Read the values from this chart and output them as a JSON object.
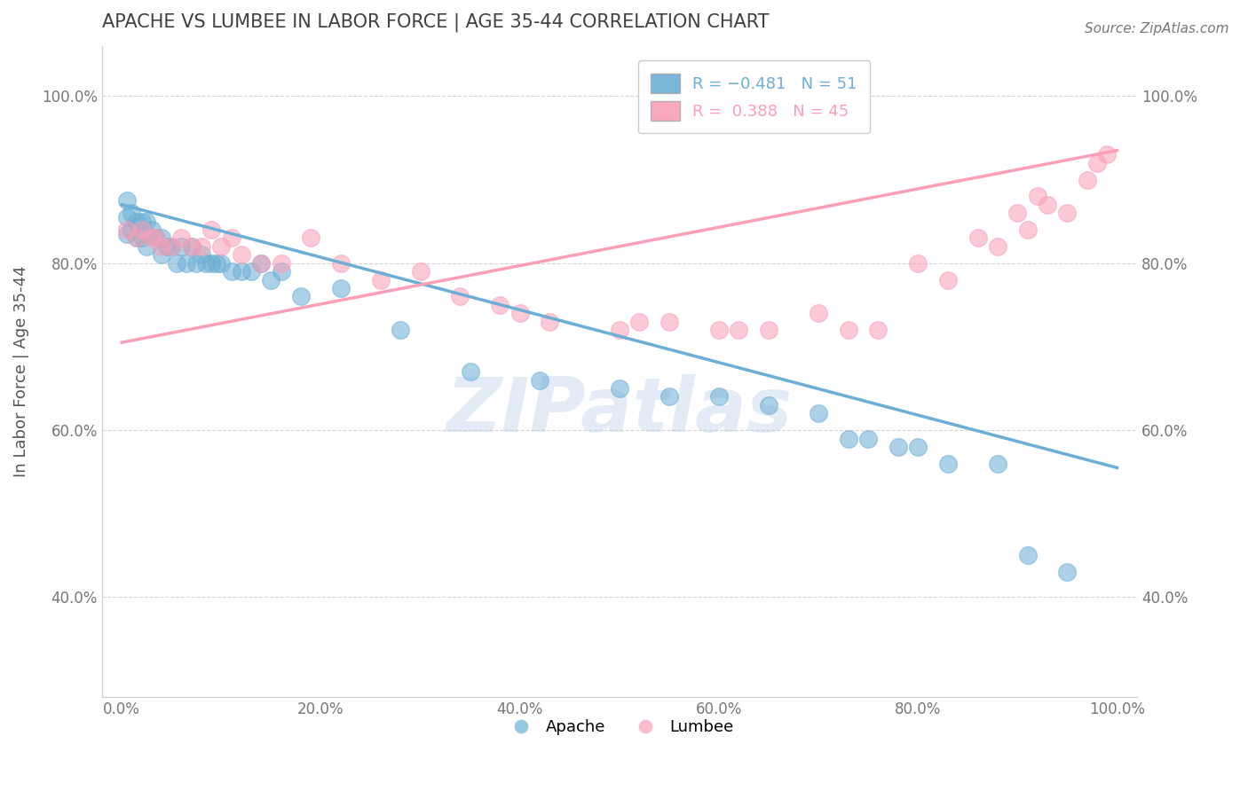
{
  "title": "APACHE VS LUMBEE IN LABOR FORCE | AGE 35-44 CORRELATION CHART",
  "source": "Source: ZipAtlas.com",
  "ylabel": "In Labor Force | Age 35-44",
  "xlim": [
    -0.02,
    1.02
  ],
  "ylim": [
    0.28,
    1.06
  ],
  "xticks": [
    0.0,
    0.2,
    0.4,
    0.6,
    0.8,
    1.0
  ],
  "xticklabels": [
    "0.0%",
    "20.0%",
    "40.0%",
    "60.0%",
    "80.0%",
    "100.0%"
  ],
  "yticks": [
    0.4,
    0.6,
    0.8,
    1.0
  ],
  "yticklabels": [
    "40.0%",
    "60.0%",
    "80.0%",
    "100.0%"
  ],
  "apache_color": "#6baed6",
  "lumbee_color": "#fa9fb5",
  "apache_R": -0.481,
  "apache_N": 51,
  "lumbee_R": 0.388,
  "lumbee_N": 45,
  "watermark": "ZIPatlas",
  "legend_apache_label": "Apache",
  "legend_lumbee_label": "Lumbee",
  "apache_x": [
    0.005,
    0.005,
    0.005,
    0.01,
    0.01,
    0.015,
    0.015,
    0.02,
    0.02,
    0.025,
    0.025,
    0.03,
    0.035,
    0.04,
    0.04,
    0.045,
    0.05,
    0.055,
    0.06,
    0.065,
    0.07,
    0.075,
    0.08,
    0.085,
    0.09,
    0.095,
    0.1,
    0.11,
    0.12,
    0.13,
    0.14,
    0.15,
    0.16,
    0.18,
    0.22,
    0.28,
    0.35,
    0.42,
    0.5,
    0.55,
    0.6,
    0.65,
    0.7,
    0.73,
    0.75,
    0.78,
    0.8,
    0.83,
    0.88,
    0.91,
    0.95
  ],
  "apache_y": [
    0.875,
    0.855,
    0.835,
    0.86,
    0.84,
    0.85,
    0.83,
    0.85,
    0.83,
    0.85,
    0.82,
    0.84,
    0.83,
    0.83,
    0.81,
    0.82,
    0.82,
    0.8,
    0.82,
    0.8,
    0.82,
    0.8,
    0.81,
    0.8,
    0.8,
    0.8,
    0.8,
    0.79,
    0.79,
    0.79,
    0.8,
    0.78,
    0.79,
    0.76,
    0.77,
    0.72,
    0.67,
    0.66,
    0.65,
    0.64,
    0.64,
    0.63,
    0.62,
    0.59,
    0.59,
    0.58,
    0.58,
    0.56,
    0.56,
    0.45,
    0.43
  ],
  "lumbee_x": [
    0.005,
    0.015,
    0.02,
    0.03,
    0.035,
    0.04,
    0.05,
    0.06,
    0.07,
    0.08,
    0.09,
    0.1,
    0.11,
    0.12,
    0.14,
    0.16,
    0.19,
    0.22,
    0.26,
    0.3,
    0.34,
    0.38,
    0.4,
    0.43,
    0.5,
    0.52,
    0.55,
    0.6,
    0.62,
    0.65,
    0.7,
    0.73,
    0.76,
    0.8,
    0.83,
    0.86,
    0.88,
    0.9,
    0.91,
    0.92,
    0.93,
    0.95,
    0.97,
    0.98,
    0.99
  ],
  "lumbee_y": [
    0.84,
    0.83,
    0.84,
    0.83,
    0.83,
    0.82,
    0.82,
    0.83,
    0.82,
    0.82,
    0.84,
    0.82,
    0.83,
    0.81,
    0.8,
    0.8,
    0.83,
    0.8,
    0.78,
    0.79,
    0.76,
    0.75,
    0.74,
    0.73,
    0.72,
    0.73,
    0.73,
    0.72,
    0.72,
    0.72,
    0.74,
    0.72,
    0.72,
    0.8,
    0.78,
    0.83,
    0.82,
    0.86,
    0.84,
    0.88,
    0.87,
    0.86,
    0.9,
    0.92,
    0.93
  ],
  "background_color": "#ffffff",
  "grid_color": "#d0d0d0",
  "title_color": "#404040",
  "axis_label_color": "#555555",
  "tick_color": "#777777"
}
